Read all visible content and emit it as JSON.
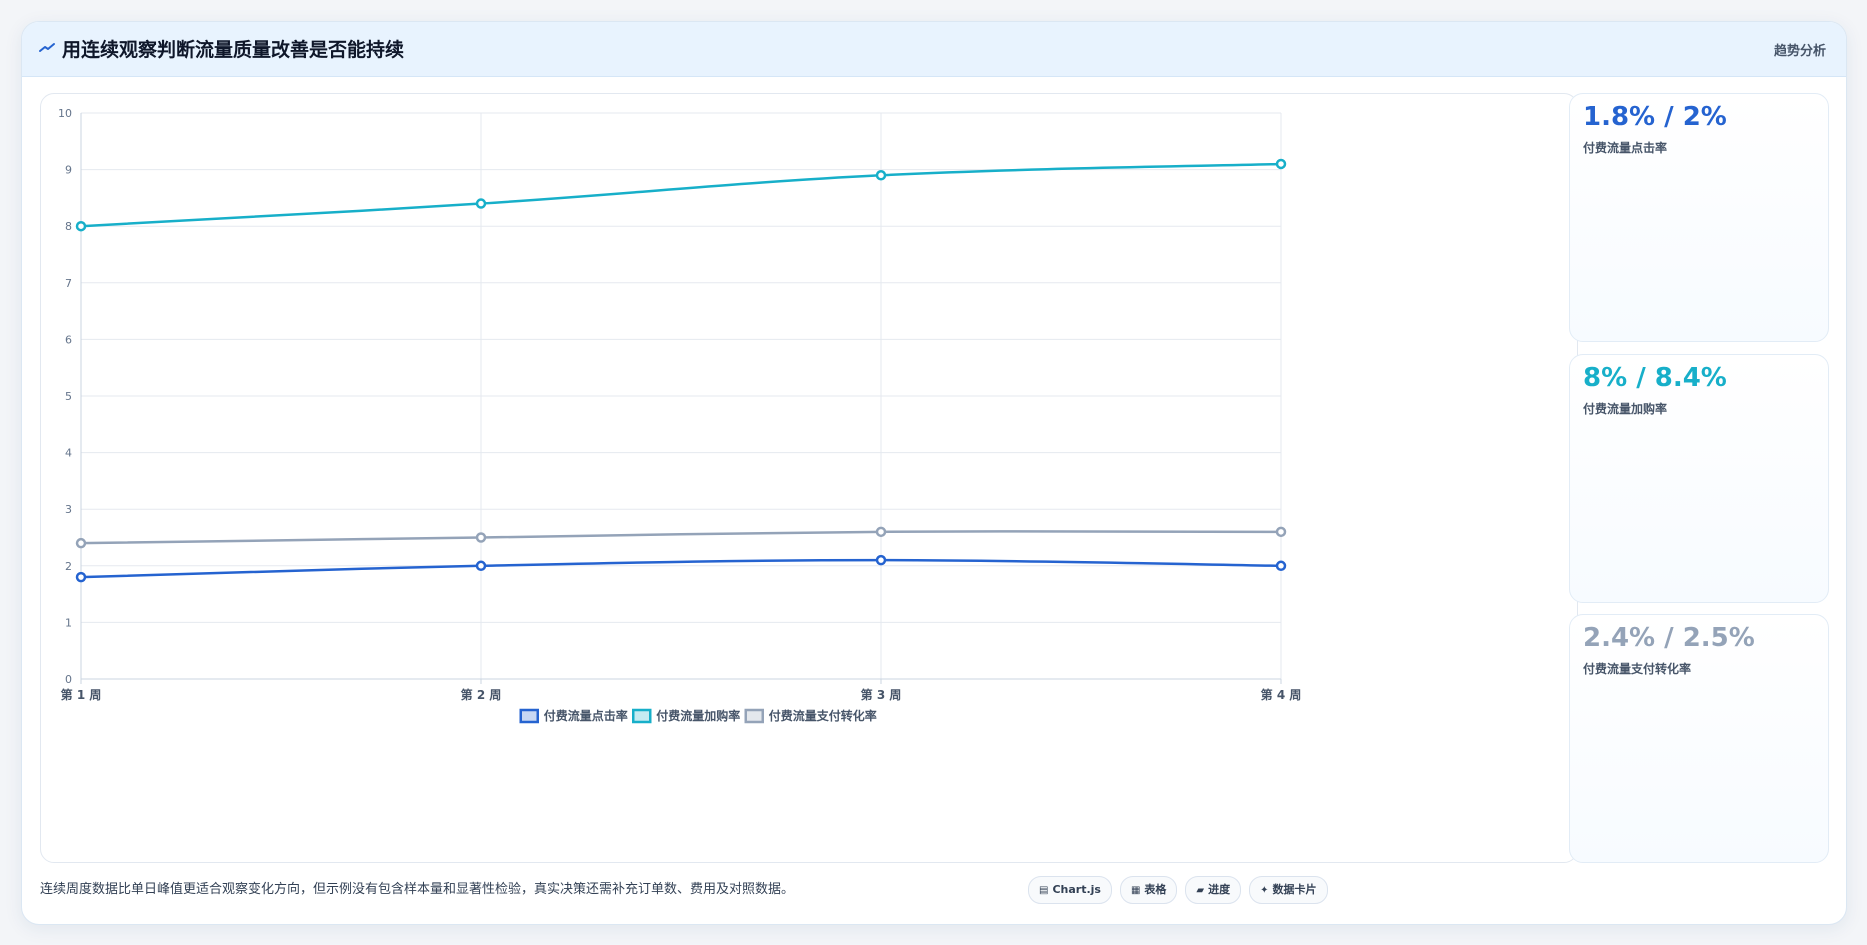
{
  "header": {
    "title": "用连续观察判断流量质量改善是否能持续",
    "tag": "趋势分析",
    "icon": "trend-icon"
  },
  "kpis": [
    {
      "value": "1.8% / 2%",
      "label": "付费流量点击率",
      "color": "#2563d0"
    },
    {
      "value": "8% / 8.4%",
      "label": "付费流量加购率",
      "color": "#17afc9"
    },
    {
      "value": "2.4% / 2.5%",
      "label": "付费流量支付转化率",
      "color": "#94a3b8"
    }
  ],
  "footnote": "连续周度数据比单日峰值更适合观察变化方向，但示例没有包含样本量和显著性检验，真实决策还需补充订单数、费用及对照数据。",
  "chips": [
    {
      "label": "Chart.js",
      "icon": "chart-icon"
    },
    {
      "label": "表格",
      "icon": "table-icon"
    },
    {
      "label": "进度",
      "icon": "progress-icon"
    },
    {
      "label": "数据卡片",
      "icon": "card-icon"
    }
  ],
  "chart_data": {
    "type": "line",
    "categories": [
      "第 1 周",
      "第 2 周",
      "第 3 周",
      "第 4 周"
    ],
    "ylim": [
      0,
      10
    ],
    "yticks": [
      "0",
      "1",
      "2",
      "3",
      "4",
      "5",
      "6",
      "7",
      "8",
      "9",
      "10"
    ],
    "grid": true,
    "legend_position": "bottom",
    "series": [
      {
        "name": "付费流量点击率",
        "values": [
          1.8,
          2.0,
          2.1,
          2.0
        ],
        "color": "#2563d0"
      },
      {
        "name": "付费流量加购率",
        "values": [
          8.0,
          8.4,
          8.9,
          9.1
        ],
        "color": "#17afc9"
      },
      {
        "name": "付费流量支付转化率",
        "values": [
          2.4,
          2.5,
          2.6,
          2.6
        ],
        "color": "#94a3b8"
      }
    ]
  }
}
